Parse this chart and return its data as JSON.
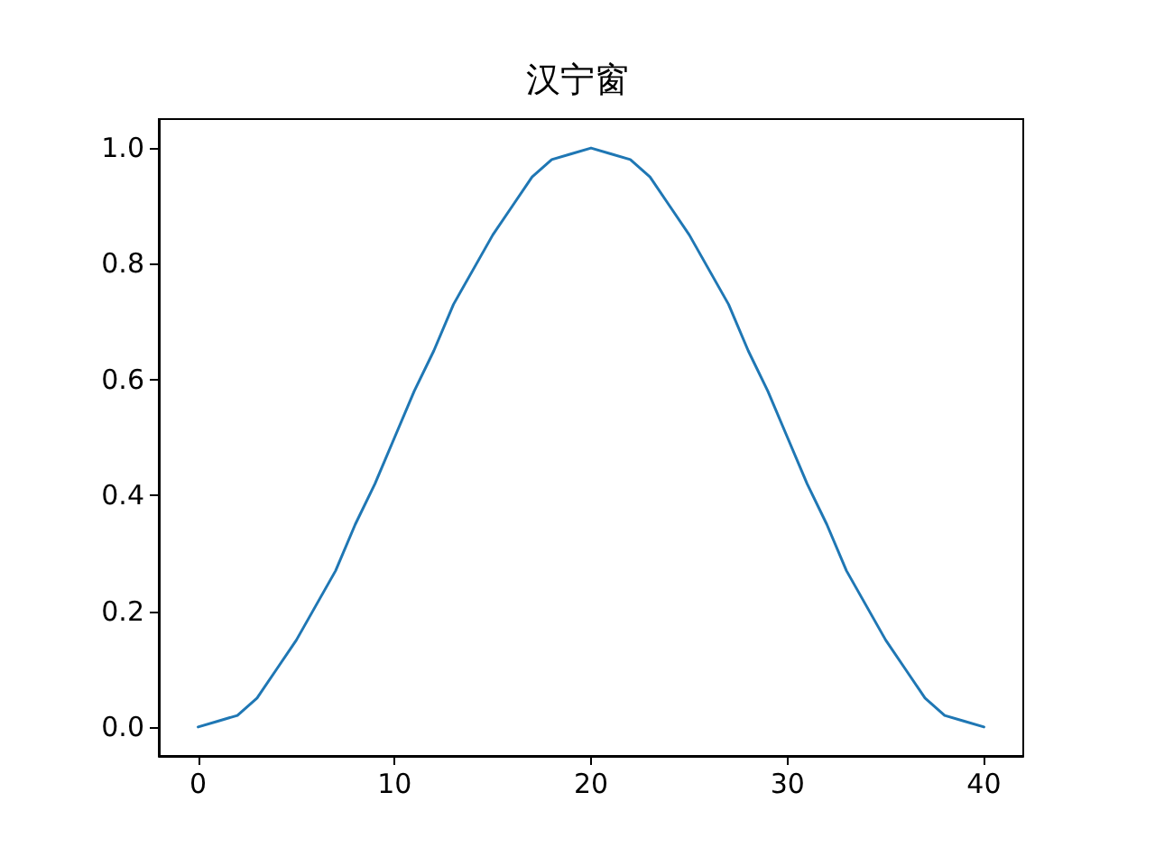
{
  "chart_data": {
    "type": "line",
    "title": "汉宁窗",
    "x": [
      0,
      1,
      2,
      3,
      4,
      5,
      6,
      7,
      8,
      9,
      10,
      11,
      12,
      13,
      14,
      15,
      16,
      17,
      18,
      19,
      20,
      21,
      22,
      23,
      24,
      25,
      26,
      27,
      28,
      29,
      30,
      31,
      32,
      33,
      34,
      35,
      36,
      37,
      38,
      39,
      40
    ],
    "series": [
      {
        "color": "#1f77b4",
        "values": [
          0,
          0.01,
          0.02,
          0.05,
          0.1,
          0.15,
          0.21,
          0.27,
          0.35,
          0.42,
          0.5,
          0.58,
          0.65,
          0.73,
          0.79,
          0.85,
          0.9,
          0.95,
          0.98,
          0.99,
          1,
          0.99,
          0.98,
          0.95,
          0.9,
          0.85,
          0.79,
          0.73,
          0.65,
          0.58,
          0.5,
          0.42,
          0.35,
          0.27,
          0.21,
          0.15,
          0.1,
          0.05,
          0.02,
          0.01,
          0
        ]
      }
    ],
    "xlim": [
      -2,
      42
    ],
    "xticks": [
      0,
      10,
      20,
      30,
      40
    ],
    "ylim": [
      -0.05,
      1.05
    ],
    "yticks": [
      {
        "value": 0,
        "label": "0.0"
      },
      0.2,
      0.4,
      0.6,
      0.8,
      {
        "value": 1,
        "label": "1.0"
      }
    ],
    "grid": false,
    "marker": "none",
    "line_style": "solid"
  }
}
